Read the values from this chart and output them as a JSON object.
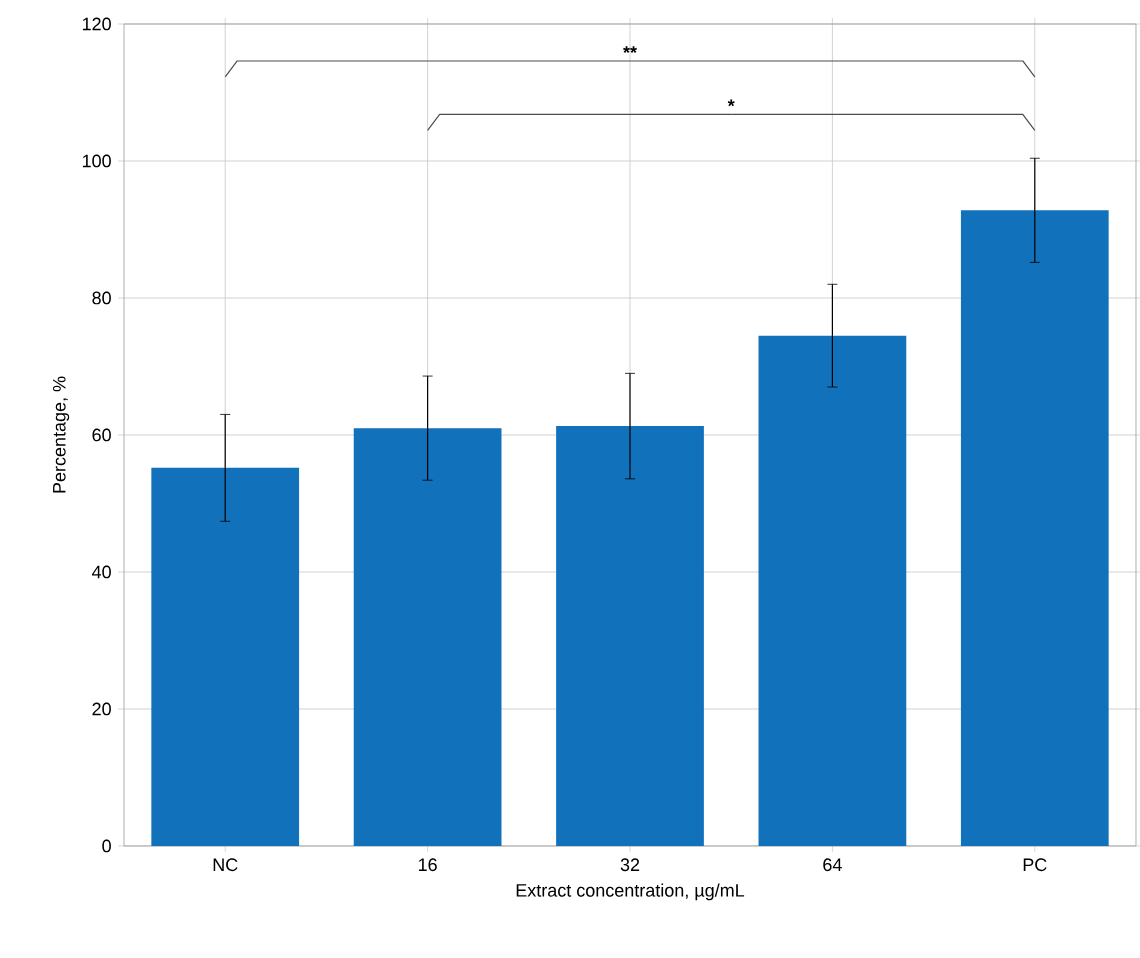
{
  "chart_data": {
    "type": "bar",
    "xlabel": "Extract concentration, µg/mL",
    "ylabel": "Percentage, %",
    "categories": [
      "NC",
      "16",
      "32",
      "64",
      "PC"
    ],
    "values": [
      55.2,
      61.0,
      61.3,
      74.5,
      92.8
    ],
    "errors": [
      7.8,
      7.6,
      7.7,
      7.5,
      7.6
    ],
    "color": "#1271bb",
    "ylim": [
      0,
      120
    ],
    "yticks": [
      0,
      20,
      40,
      60,
      80,
      100,
      120
    ],
    "grid": true,
    "annotations": [
      "**",
      "*"
    ]
  }
}
